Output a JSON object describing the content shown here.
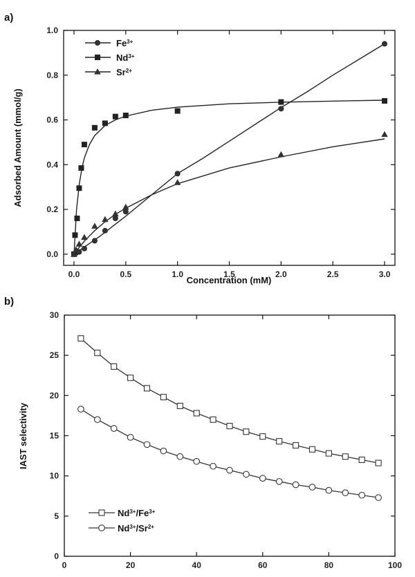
{
  "chart_data": [
    {
      "panel": "a)",
      "type": "scatter",
      "xlabel": "Concentration (mM)",
      "ylabel": "Adsorbed Amount (mmol/g)",
      "xlim": [
        -0.1,
        3.1
      ],
      "ylim": [
        -0.05,
        1.0
      ],
      "xticks": [
        "0.0",
        "0.5",
        "1.0",
        "1.5",
        "2.0",
        "2.5",
        "3.0"
      ],
      "yticks": [
        "0.0",
        "0.2",
        "0.4",
        "0.6",
        "0.8",
        "1.0"
      ],
      "legend_position": "top-left",
      "series": [
        {
          "name": "Fe",
          "charge": "3+",
          "marker": "circle",
          "x": [
            0,
            0.02,
            0.05,
            0.1,
            0.2,
            0.3,
            0.4,
            0.5,
            1.0,
            2.0,
            3.0
          ],
          "y": [
            0.0,
            0.005,
            0.01,
            0.025,
            0.06,
            0.105,
            0.16,
            0.19,
            0.36,
            0.65,
            0.94
          ],
          "fit": [
            [
              0,
              0.0
            ],
            [
              0.25,
              0.08
            ],
            [
              0.5,
              0.17
            ],
            [
              0.75,
              0.265
            ],
            [
              1.0,
              0.36
            ],
            [
              1.25,
              0.43
            ],
            [
              1.5,
              0.505
            ],
            [
              1.75,
              0.58
            ],
            [
              2.0,
              0.655
            ],
            [
              2.25,
              0.725
            ],
            [
              2.5,
              0.8
            ],
            [
              2.75,
              0.87
            ],
            [
              3.0,
              0.94
            ]
          ]
        },
        {
          "name": "Nd",
          "charge": "3+",
          "marker": "square",
          "x": [
            0,
            0.01,
            0.03,
            0.05,
            0.07,
            0.1,
            0.2,
            0.3,
            0.4,
            0.5,
            1.0,
            2.0,
            3.0
          ],
          "y": [
            0.0,
            0.085,
            0.16,
            0.295,
            0.385,
            0.49,
            0.565,
            0.585,
            0.615,
            0.62,
            0.64,
            0.68,
            0.685
          ],
          "fit": [
            [
              0,
              0.0
            ],
            [
              0.025,
              0.2
            ],
            [
              0.05,
              0.31
            ],
            [
              0.075,
              0.38
            ],
            [
              0.1,
              0.43
            ],
            [
              0.15,
              0.49
            ],
            [
              0.2,
              0.53
            ],
            [
              0.3,
              0.575
            ],
            [
              0.4,
              0.6
            ],
            [
              0.5,
              0.617
            ],
            [
              0.75,
              0.643
            ],
            [
              1.0,
              0.657
            ],
            [
              1.5,
              0.672
            ],
            [
              2.0,
              0.679
            ],
            [
              2.5,
              0.684
            ],
            [
              3.0,
              0.688
            ]
          ]
        },
        {
          "name": "Sr",
          "charge": "2+",
          "marker": "triangle",
          "x": [
            0,
            0.02,
            0.05,
            0.1,
            0.2,
            0.3,
            0.4,
            0.5,
            1.0,
            2.0,
            3.0
          ],
          "y": [
            0.0,
            0.02,
            0.045,
            0.075,
            0.125,
            0.155,
            0.18,
            0.21,
            0.32,
            0.445,
            0.535
          ],
          "fit": [
            [
              0,
              0.0
            ],
            [
              0.05,
              0.03
            ],
            [
              0.1,
              0.058
            ],
            [
              0.2,
              0.105
            ],
            [
              0.3,
              0.145
            ],
            [
              0.4,
              0.178
            ],
            [
              0.5,
              0.205
            ],
            [
              0.75,
              0.265
            ],
            [
              1.0,
              0.315
            ],
            [
              1.5,
              0.385
            ],
            [
              2.0,
              0.435
            ],
            [
              2.5,
              0.48
            ],
            [
              3.0,
              0.515
            ]
          ]
        }
      ]
    },
    {
      "panel": "b)",
      "type": "line",
      "xlabel": "",
      "ylabel": "IAST selectivity",
      "xlim": [
        0,
        100
      ],
      "ylim": [
        0,
        30
      ],
      "xticks": [
        "0",
        "20",
        "40",
        "60",
        "80",
        "100"
      ],
      "yticks": [
        "0",
        "5",
        "10",
        "15",
        "20",
        "25",
        "30"
      ],
      "legend_position": "bottom-left",
      "x": [
        5,
        10,
        15,
        20,
        25,
        30,
        35,
        40,
        45,
        50,
        55,
        60,
        65,
        70,
        75,
        80,
        85,
        90,
        95
      ],
      "series": [
        {
          "name": "Nd/Fe",
          "label_parts": [
            "Nd",
            "3+",
            "/Fe",
            "3+"
          ],
          "marker": "open-square",
          "values": [
            27.1,
            25.3,
            23.6,
            22.2,
            20.9,
            19.8,
            18.7,
            17.8,
            17.0,
            16.2,
            15.5,
            14.9,
            14.3,
            13.8,
            13.3,
            12.8,
            12.4,
            12.0,
            11.6
          ]
        },
        {
          "name": "Nd/Sr",
          "label_parts": [
            "Nd",
            "3+",
            "/Sr",
            "2+"
          ],
          "marker": "open-circle",
          "values": [
            18.3,
            17.0,
            15.9,
            14.8,
            13.9,
            13.1,
            12.4,
            11.8,
            11.2,
            10.7,
            10.2,
            9.7,
            9.3,
            8.9,
            8.6,
            8.2,
            7.9,
            7.6,
            7.3
          ]
        }
      ]
    }
  ]
}
